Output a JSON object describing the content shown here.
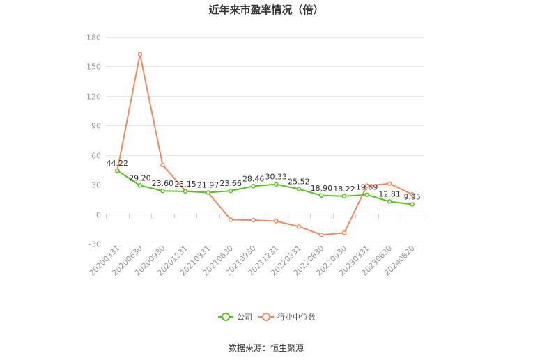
{
  "chart_data": {
    "type": "line",
    "title": "近年来市盈率情况（倍）",
    "categories": [
      "20200331",
      "20200630",
      "20200930",
      "20201231",
      "20210331",
      "20210630",
      "20210930",
      "20211231",
      "20220331",
      "20220630",
      "20220930",
      "20230331",
      "20230630",
      "20240820"
    ],
    "series": [
      {
        "name": "公司",
        "color": "#52c41a",
        "values": [
          44.22,
          29.2,
          23.6,
          23.15,
          21.97,
          23.66,
          28.46,
          30.33,
          25.52,
          18.9,
          18.22,
          19.69,
          12.81,
          9.95
        ],
        "labels": [
          "44.22",
          "29.20",
          "23.60",
          "23.15",
          "21.97",
          "23.66",
          "28.46",
          "30.33",
          "25.52",
          "18.90",
          "18.22",
          "19.69",
          "12.81",
          "9.95"
        ]
      },
      {
        "name": "行业中位数",
        "color": "#f4895f",
        "values": [
          44.0,
          162.5,
          50.0,
          23.5,
          22.0,
          -5.5,
          -6.0,
          -7.0,
          -12.5,
          -21.0,
          -19.0,
          29.0,
          31.0,
          20.0
        ]
      }
    ],
    "yaxis": {
      "min": -30,
      "max": 180,
      "ticks": [
        -30,
        0,
        30,
        60,
        90,
        120,
        150,
        180
      ]
    },
    "grid": true,
    "legend_position": "bottom"
  },
  "source_text": "数据来源：恒生聚源"
}
